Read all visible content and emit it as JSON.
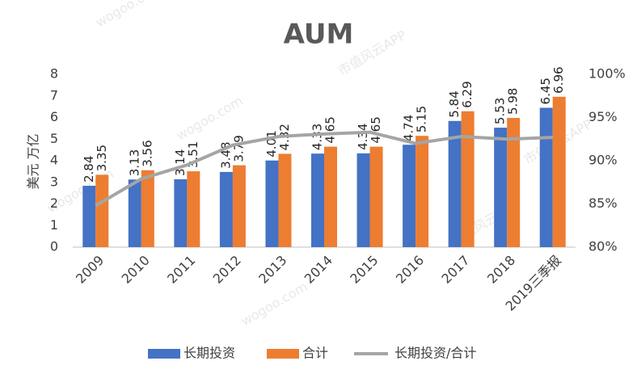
{
  "chart_data": {
    "type": "bar-line",
    "title": "AUM",
    "y_label": "美元 万亿",
    "categories": [
      "2009",
      "2010",
      "2011",
      "2012",
      "2013",
      "2014",
      "2015",
      "2016",
      "2017",
      "2018",
      "2019三季报"
    ],
    "series": [
      {
        "name": "长期投资",
        "type": "bar",
        "color": "#4472c4",
        "values": [
          2.84,
          3.13,
          3.14,
          3.48,
          4.01,
          4.33,
          4.34,
          4.74,
          5.84,
          5.53,
          6.45
        ]
      },
      {
        "name": "合计",
        "type": "bar",
        "color": "#ed7d31",
        "values": [
          3.35,
          3.56,
          3.51,
          3.79,
          4.32,
          4.65,
          4.65,
          5.15,
          6.29,
          5.98,
          6.96
        ]
      },
      {
        "name": "长期投资/合计",
        "type": "line",
        "axis": "y2",
        "color": "#a5a5a5",
        "values": [
          84.8,
          87.9,
          89.5,
          91.8,
          92.8,
          93.1,
          93.3,
          92.0,
          92.8,
          92.5,
          92.7
        ]
      }
    ],
    "ylim": [
      0,
      8
    ],
    "yticks": [
      0,
      1,
      2,
      3,
      4,
      5,
      6,
      7,
      8
    ],
    "y2lim": [
      80,
      100
    ],
    "y2ticks": [
      {
        "value": 80,
        "label": "80%"
      },
      {
        "value": 85,
        "label": "85%"
      },
      {
        "value": 90,
        "label": "90%"
      },
      {
        "value": 95,
        "label": "95%"
      },
      {
        "value": 100,
        "label": "100%"
      }
    ],
    "grid": false,
    "legend": "bottom",
    "watermark": [
      "wogoo.com",
      "市值风云APP"
    ]
  }
}
